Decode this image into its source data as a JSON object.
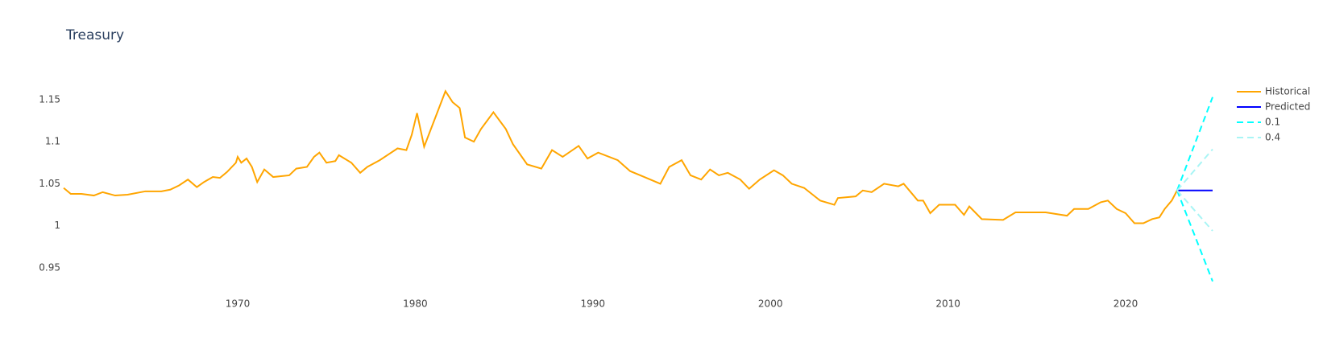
{
  "chart_data": {
    "type": "line",
    "title": "Treasury",
    "xlim": [
      1960.2,
      2024.9
    ],
    "ylim": [
      0.928,
      1.168
    ],
    "xticks": [
      1970,
      1980,
      1990,
      2000,
      2010,
      2020
    ],
    "yticks": [
      0.95,
      1,
      1.05,
      1.1,
      1.15
    ],
    "grid": false,
    "legend": "right",
    "series": [
      {
        "name": "Historical",
        "color": "#ffa500",
        "dash": "solid",
        "x": [
          1960.2,
          1960.6,
          1961.2,
          1961.9,
          1962.4,
          1963.1,
          1963.8,
          1964.8,
          1965.7,
          1966.2,
          1966.7,
          1967.2,
          1967.7,
          1968.1,
          1968.6,
          1969.0,
          1969.4,
          1969.9,
          1970.0,
          1970.2,
          1970.5,
          1970.8,
          1971.1,
          1971.5,
          1972.0,
          1972.9,
          1973.3,
          1973.9,
          1974.3,
          1974.6,
          1975.0,
          1975.5,
          1975.7,
          1976.4,
          1976.9,
          1977.3,
          1978.0,
          1978.5,
          1979.0,
          1979.5,
          1979.8,
          1980.1,
          1980.5,
          1981.7,
          1982.1,
          1982.5,
          1982.8,
          1983.3,
          1983.7,
          1984.4,
          1985.1,
          1985.5,
          1986.3,
          1987.1,
          1987.7,
          1988.3,
          1989.2,
          1989.7,
          1990.3,
          1991.4,
          1992.1,
          1992.9,
          1993.8,
          1994.3,
          1995.0,
          1995.5,
          1996.1,
          1996.6,
          1997.1,
          1997.6,
          1998.3,
          1998.8,
          1999.4,
          2000.2,
          2000.7,
          2001.2,
          2001.9,
          2002.8,
          2003.6,
          2003.8,
          2004.8,
          2005.2,
          2005.7,
          2006.4,
          2007.2,
          2007.5,
          2008.3,
          2008.6,
          2009.0,
          2009.5,
          2010.4,
          2010.9,
          2011.2,
          2011.9,
          2013.1,
          2013.8,
          2015.5,
          2016.7,
          2017.1,
          2017.9,
          2018.6,
          2019.0,
          2019.5,
          2020.0,
          2020.5,
          2021.0,
          2021.5,
          2021.9,
          2022.2,
          2022.6,
          2022.9
        ],
        "values": [
          1.045,
          1.038,
          1.038,
          1.036,
          1.04,
          1.036,
          1.037,
          1.041,
          1.041,
          1.043,
          1.048,
          1.055,
          1.046,
          1.052,
          1.058,
          1.057,
          1.064,
          1.075,
          1.082,
          1.075,
          1.08,
          1.07,
          1.052,
          1.067,
          1.058,
          1.06,
          1.068,
          1.07,
          1.082,
          1.087,
          1.075,
          1.077,
          1.084,
          1.075,
          1.063,
          1.07,
          1.078,
          1.085,
          1.092,
          1.09,
          1.108,
          1.134,
          1.094,
          1.16,
          1.147,
          1.14,
          1.105,
          1.1,
          1.115,
          1.135,
          1.115,
          1.097,
          1.073,
          1.068,
          1.09,
          1.082,
          1.095,
          1.08,
          1.087,
          1.078,
          1.065,
          1.058,
          1.05,
          1.07,
          1.078,
          1.06,
          1.055,
          1.067,
          1.06,
          1.063,
          1.055,
          1.044,
          1.055,
          1.066,
          1.06,
          1.05,
          1.045,
          1.03,
          1.025,
          1.033,
          1.035,
          1.042,
          1.04,
          1.05,
          1.047,
          1.05,
          1.03,
          1.03,
          1.015,
          1.025,
          1.025,
          1.013,
          1.023,
          1.008,
          1.007,
          1.016,
          1.016,
          1.012,
          1.02,
          1.02,
          1.028,
          1.03,
          1.02,
          1.015,
          1.003,
          1.003,
          1.008,
          1.01,
          1.02,
          1.03,
          1.042
        ]
      },
      {
        "name": "Predicted",
        "color": "#0000ff",
        "dash": "solid",
        "x": [
          2022.9,
          2024.9
        ],
        "values": [
          1.042,
          1.042
        ]
      },
      {
        "name": "0.1",
        "color": "#00ffff",
        "dash": "dash",
        "x": [
          2022.9,
          2024.9
        ],
        "values": [
          1.042,
          1.153
        ],
        "lower": [
          1.042,
          0.934
        ]
      },
      {
        "name": "0.4",
        "color": "#a8f5f5",
        "dash": "dash",
        "x": [
          2022.9,
          2024.9
        ],
        "values": [
          1.042,
          1.091
        ],
        "lower": [
          1.042,
          0.994
        ]
      }
    ]
  }
}
